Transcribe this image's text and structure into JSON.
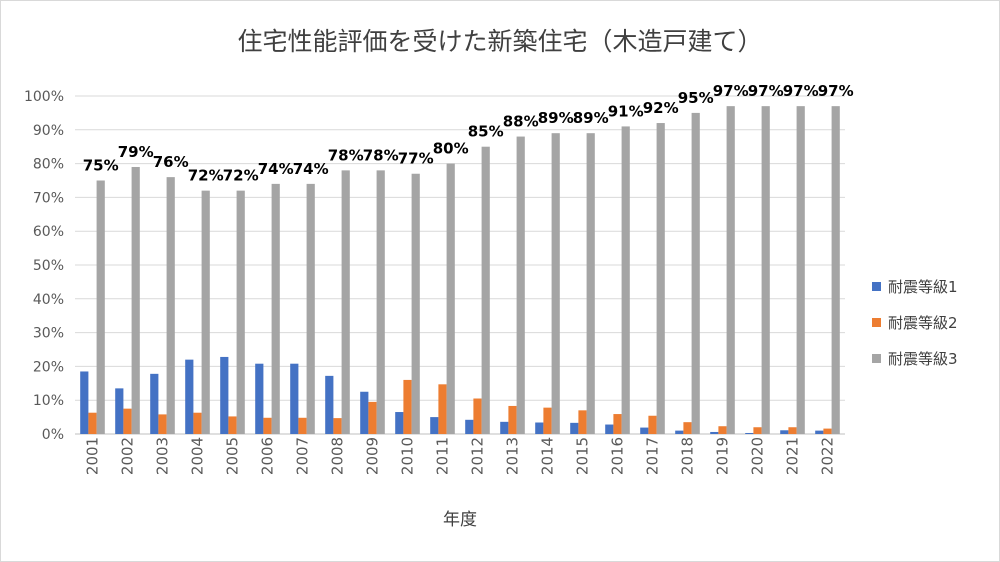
{
  "chart_data": {
    "type": "bar",
    "title": "住宅性能評価を受けた新築住宅（木造戸建て）",
    "xlabel": "年度",
    "ylabel": "",
    "ylim": [
      0,
      100
    ],
    "yticks": [
      "0%",
      "10%",
      "20%",
      "30%",
      "40%",
      "50%",
      "60%",
      "70%",
      "80%",
      "90%",
      "100%"
    ],
    "grid": true,
    "legend_position": "right",
    "categories": [
      "2001",
      "2002",
      "2003",
      "2004",
      "2005",
      "2006",
      "2007",
      "2008",
      "2009",
      "2010",
      "2011",
      "2012",
      "2013",
      "2014",
      "2015",
      "2016",
      "2017",
      "2018",
      "2019",
      "2020",
      "2021",
      "2022"
    ],
    "series": [
      {
        "name": "耐震等級1",
        "color": "#4472C4",
        "values": [
          18.5,
          13.5,
          17.8,
          22.0,
          22.8,
          20.8,
          20.8,
          17.2,
          12.5,
          6.5,
          5.0,
          4.2,
          3.6,
          3.4,
          3.3,
          2.8,
          1.9,
          1.0,
          0.6,
          0.3,
          1.1,
          1.0
        ]
      },
      {
        "name": "耐震等級2",
        "color": "#ED7D31",
        "values": [
          6.3,
          7.5,
          5.8,
          6.3,
          5.2,
          4.8,
          4.8,
          4.7,
          9.5,
          16.0,
          14.7,
          10.5,
          8.3,
          7.8,
          7.0,
          5.9,
          5.4,
          3.5,
          2.3,
          2.0,
          2.0,
          1.6
        ]
      },
      {
        "name": "耐震等級3",
        "color": "#A5A5A5",
        "values": [
          75,
          79,
          76,
          72,
          72,
          74,
          74,
          78,
          78,
          77,
          80,
          85,
          88,
          89,
          89,
          91,
          92,
          95,
          97,
          97,
          97,
          97
        ],
        "data_labels": [
          "75%",
          "79%",
          "76%",
          "72%",
          "72%",
          "74%",
          "74%",
          "78%",
          "78%",
          "77%",
          "80%",
          "85%",
          "88%",
          "89%",
          "89%",
          "91%",
          "92%",
          "95%",
          "97%",
          "97%",
          "97%",
          "97%"
        ]
      }
    ]
  }
}
